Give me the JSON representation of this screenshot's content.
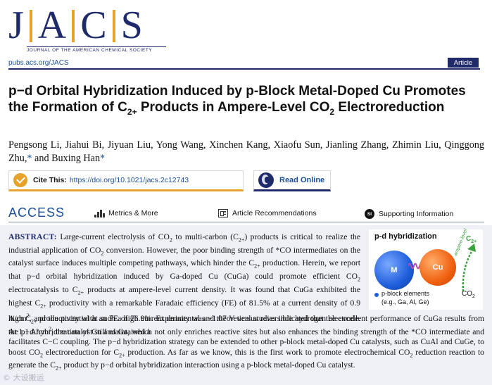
{
  "journal": {
    "logo_letters": [
      "J",
      "A",
      "C",
      "S"
    ],
    "logo_subtitle": "JOURNAL OF THE AMERICAN CHEMICAL SOCIETY",
    "pubs_link": "pubs.acs.org/JACS",
    "article_type": "Article",
    "brand_colors": {
      "navy": "#1f2a6b",
      "gold": "#e6a22a",
      "link": "#1b4f9c"
    }
  },
  "paper": {
    "title_parts": {
      "t1": "p−d Orbital Hybridization Induced by p-Block Metal-Doped Cu Promotes the Formation of C",
      "t1_sub": "2+",
      "t2": " Products in Ampere-Level CO",
      "t2_sub": "2",
      "t3": " Electroreduction"
    },
    "authors_plain": "Pengsong Li, Jiahui Bi, Jiyuan Liu, Yong Wang, Xinchen Kang, Xiaofu Sun, Jianling Zhang, Zhimin Liu, Qinggong Zhu,",
    "author_star": "*",
    "authors_and": " and Buxing Han",
    "author_star2": "*"
  },
  "cite": {
    "label": "Cite This:",
    "url": "https://doi.org/10.1021/jacs.2c12743",
    "icon": "check-circle-icon"
  },
  "read_online": {
    "label": "Read Online",
    "icon": "globe-icon"
  },
  "access": {
    "label": "ACCESS",
    "items": [
      {
        "label": "Metrics & More",
        "icon": "bar-chart-icon"
      },
      {
        "label": "Article Recommendations",
        "icon": "recommendations-icon"
      },
      {
        "label": "Supporting Information",
        "icon": "si-icon",
        "icon_text": "SI"
      }
    ]
  },
  "abstract": {
    "lead": "ABSTRACT:",
    "s": {
      "a1": " Large-current electrolysis of CO",
      "a1b": " to multi-carbon (C",
      "a1c": ") products is critical to realize the industrial application of CO",
      "a1d": " conversion. However, the poor binding strength of *CO intermediates on the catalyst surface induces multiple competing pathways, which hinder the C",
      "a1e": " production. Herein, we report that p−d orbital hybridization induced by Ga-doped Cu (CuGa) could promote efficient CO",
      "a1f": " electrocatalysis to C",
      "a1g": " products at ampere-level current density. It was found that CuGa exhibited the highest C",
      "a1h": " productivity with a remarkable Faradaic efficiency (FE) of 81.5% at a current density of 0.9 A/cm",
      "a1i": ", and the potential at such a high current density was −1.07 V versus reversible hydrogen electrode. At 1.1 A/cm",
      "a1j": ", the catalyst still maintained a",
      "a2": "high C",
      "a2b": " productivity with an FE of 76.9%. Experimental and theoretical studies indicated that the excellent performance of CuGa results from the p−d hybridization of Cu and Ga, which not only enriches reactive sites but also enhances the binding strength of the *CO intermediate and facilitates C−C coupling. The p−d hybridization strategy can be extended to other p-block metal-doped Cu catalysts, such as CuAl and CuGe, to boost CO",
      "a2c": " electroreduction for C",
      "a2d": " production. As far as we know, this is the first work to promote electrochemical CO",
      "a2e": " reduction reaction to generate the C",
      "a2f": " product by p−d orbital hybridization interaction using a p-block metal-doped Cu catalyst."
    },
    "sub": {
      "two": "2",
      "twoplus": "2+"
    },
    "sup": {
      "two": "2"
    }
  },
  "toc_graphic": {
    "title": "p-d hybridization",
    "atom_m": "M",
    "atom_cu": "Cu",
    "legend_line1": "p-block elements",
    "legend_line2": "(e.g., Ga, Al, Ge)",
    "product": "C",
    "product_sub": "2+",
    "reactant": "CO",
    "reactant_sub": "2",
    "arrow_label": "ampere-level",
    "colors": {
      "m_atom": "#1e5ddb",
      "cu_atom": "#f06010",
      "arrow": "#3aa23a"
    }
  },
  "watermark": "© 大设搬运"
}
